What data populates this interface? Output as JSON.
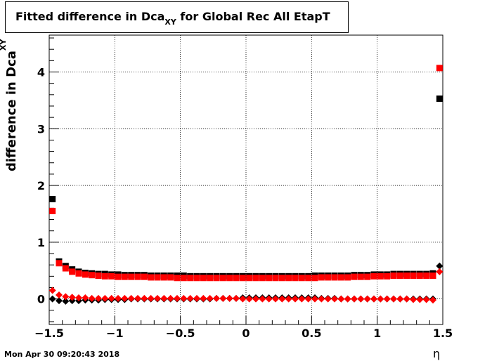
{
  "title": {
    "main": "Fitted difference in Dca",
    "subscript": "XY",
    "suffix": " for Global Rec All EtapT"
  },
  "datestamp": "Mon Apr 30 09:20:43 2018",
  "chart_data": {
    "type": "scatter",
    "xlabel": "η",
    "ylabel": {
      "main": "difference in Dca",
      "subscript": "XY"
    },
    "xlim": [
      -1.5,
      1.5
    ],
    "ylim": [
      -0.45,
      4.65
    ],
    "grid": true,
    "xticks": [
      "−1.5",
      "−1",
      "−0.5",
      "0",
      "0.5",
      "1",
      "1.5"
    ],
    "yticks": [
      "0",
      "1",
      "2",
      "3",
      "4"
    ],
    "series": [
      {
        "marker": "square",
        "color": "#000000",
        "x": [
          -1.475,
          -1.425,
          -1.375,
          -1.325,
          -1.275,
          -1.225,
          -1.175,
          -1.125,
          -1.075,
          -1.025,
          -0.975,
          -0.925,
          -0.875,
          -0.825,
          -0.775,
          -0.725,
          -0.675,
          -0.625,
          -0.575,
          -0.525,
          -0.475,
          -0.425,
          -0.375,
          -0.325,
          -0.275,
          -0.225,
          -0.175,
          -0.125,
          -0.075,
          -0.025,
          0.025,
          0.075,
          0.125,
          0.175,
          0.225,
          0.275,
          0.325,
          0.375,
          0.425,
          0.475,
          0.525,
          0.575,
          0.625,
          0.675,
          0.725,
          0.775,
          0.825,
          0.875,
          0.925,
          0.975,
          1.025,
          1.075,
          1.125,
          1.175,
          1.225,
          1.275,
          1.325,
          1.375,
          1.425,
          1.475
        ],
        "y": [
          1.76,
          0.66,
          0.58,
          0.52,
          0.48,
          0.46,
          0.45,
          0.44,
          0.44,
          0.43,
          0.43,
          0.42,
          0.42,
          0.42,
          0.42,
          0.41,
          0.41,
          0.41,
          0.41,
          0.41,
          0.41,
          0.4,
          0.4,
          0.4,
          0.4,
          0.4,
          0.4,
          0.4,
          0.4,
          0.4,
          0.4,
          0.4,
          0.4,
          0.4,
          0.4,
          0.4,
          0.4,
          0.4,
          0.4,
          0.4,
          0.41,
          0.41,
          0.41,
          0.41,
          0.41,
          0.41,
          0.42,
          0.42,
          0.42,
          0.43,
          0.43,
          0.43,
          0.44,
          0.44,
          0.44,
          0.44,
          0.44,
          0.44,
          0.45,
          3.53
        ]
      },
      {
        "marker": "square",
        "color": "#ff0000",
        "x": [
          -1.475,
          -1.425,
          -1.375,
          -1.325,
          -1.275,
          -1.225,
          -1.175,
          -1.125,
          -1.075,
          -1.025,
          -0.975,
          -0.925,
          -0.875,
          -0.825,
          -0.775,
          -0.725,
          -0.675,
          -0.625,
          -0.575,
          -0.525,
          -0.475,
          -0.425,
          -0.375,
          -0.325,
          -0.275,
          -0.225,
          -0.175,
          -0.125,
          -0.075,
          -0.025,
          0.025,
          0.075,
          0.125,
          0.175,
          0.225,
          0.275,
          0.325,
          0.375,
          0.425,
          0.475,
          0.525,
          0.575,
          0.625,
          0.675,
          0.725,
          0.775,
          0.825,
          0.875,
          0.925,
          0.975,
          1.025,
          1.075,
          1.125,
          1.175,
          1.225,
          1.275,
          1.325,
          1.375,
          1.425,
          1.475
        ],
        "y": [
          1.55,
          0.63,
          0.54,
          0.48,
          0.45,
          0.43,
          0.42,
          0.41,
          0.4,
          0.4,
          0.39,
          0.39,
          0.39,
          0.39,
          0.39,
          0.38,
          0.38,
          0.38,
          0.38,
          0.37,
          0.37,
          0.37,
          0.37,
          0.37,
          0.37,
          0.37,
          0.37,
          0.37,
          0.37,
          0.37,
          0.37,
          0.37,
          0.37,
          0.37,
          0.37,
          0.37,
          0.37,
          0.37,
          0.37,
          0.37,
          0.37,
          0.38,
          0.38,
          0.38,
          0.38,
          0.38,
          0.39,
          0.39,
          0.39,
          0.4,
          0.4,
          0.4,
          0.41,
          0.41,
          0.41,
          0.41,
          0.41,
          0.41,
          0.41,
          4.07
        ]
      },
      {
        "marker": "diamond",
        "color": "#000000",
        "x": [
          -1.475,
          -1.425,
          -1.375,
          -1.325,
          -1.275,
          -1.225,
          -1.175,
          -1.125,
          -1.075,
          -1.025,
          -0.975,
          -0.925,
          -0.875,
          -0.825,
          -0.775,
          -0.725,
          -0.675,
          -0.625,
          -0.575,
          -0.525,
          -0.475,
          -0.425,
          -0.375,
          -0.325,
          -0.275,
          -0.225,
          -0.175,
          -0.125,
          -0.075,
          -0.025,
          0.025,
          0.075,
          0.125,
          0.175,
          0.225,
          0.275,
          0.325,
          0.375,
          0.425,
          0.475,
          0.525,
          0.575,
          0.625,
          0.675,
          0.725,
          0.775,
          0.825,
          0.875,
          0.925,
          0.975,
          1.025,
          1.075,
          1.125,
          1.175,
          1.225,
          1.275,
          1.325,
          1.375,
          1.425,
          1.475
        ],
        "y": [
          0.0,
          -0.03,
          -0.04,
          -0.03,
          -0.03,
          -0.02,
          -0.02,
          -0.02,
          -0.01,
          -0.01,
          -0.01,
          -0.01,
          0.0,
          0.0,
          0.0,
          0.0,
          0.0,
          0.0,
          0.0,
          0.0,
          0.0,
          0.0,
          0.0,
          0.0,
          0.0,
          0.01,
          0.01,
          0.01,
          0.01,
          0.02,
          0.02,
          0.02,
          0.02,
          0.02,
          0.02,
          0.02,
          0.02,
          0.02,
          0.02,
          0.02,
          0.02,
          0.01,
          0.01,
          0.01,
          0.0,
          0.0,
          0.0,
          0.0,
          0.0,
          0.0,
          0.0,
          0.0,
          0.0,
          0.0,
          0.0,
          0.0,
          0.0,
          0.0,
          0.0,
          0.58
        ]
      },
      {
        "marker": "diamond",
        "color": "#ff0000",
        "x": [
          -1.475,
          -1.425,
          -1.375,
          -1.325,
          -1.275,
          -1.225,
          -1.175,
          -1.125,
          -1.075,
          -1.025,
          -0.975,
          -0.925,
          -0.875,
          -0.825,
          -0.775,
          -0.725,
          -0.675,
          -0.625,
          -0.575,
          -0.525,
          -0.475,
          -0.425,
          -0.375,
          -0.325,
          -0.275,
          -0.225,
          -0.175,
          -0.125,
          -0.075,
          -0.025,
          0.025,
          0.075,
          0.125,
          0.175,
          0.225,
          0.275,
          0.325,
          0.375,
          0.425,
          0.475,
          0.525,
          0.575,
          0.625,
          0.675,
          0.725,
          0.775,
          0.825,
          0.875,
          0.925,
          0.975,
          1.025,
          1.075,
          1.125,
          1.175,
          1.225,
          1.275,
          1.325,
          1.375,
          1.425,
          1.475
        ],
        "y": [
          0.15,
          0.07,
          0.04,
          0.03,
          0.02,
          0.02,
          0.01,
          0.01,
          0.01,
          0.01,
          0.01,
          0.01,
          0.01,
          0.01,
          0.01,
          0.01,
          0.01,
          0.01,
          0.01,
          0.01,
          0.01,
          0.01,
          0.01,
          0.01,
          0.01,
          0.01,
          0.01,
          0.01,
          0.01,
          0.0,
          0.0,
          0.0,
          0.0,
          0.0,
          0.0,
          0.0,
          0.0,
          0.0,
          0.0,
          0.0,
          0.0,
          0.0,
          0.0,
          0.0,
          0.0,
          0.0,
          0.0,
          0.0,
          0.0,
          0.0,
          0.0,
          0.0,
          0.0,
          0.0,
          0.0,
          -0.01,
          -0.01,
          -0.01,
          -0.02,
          0.48
        ]
      }
    ]
  }
}
